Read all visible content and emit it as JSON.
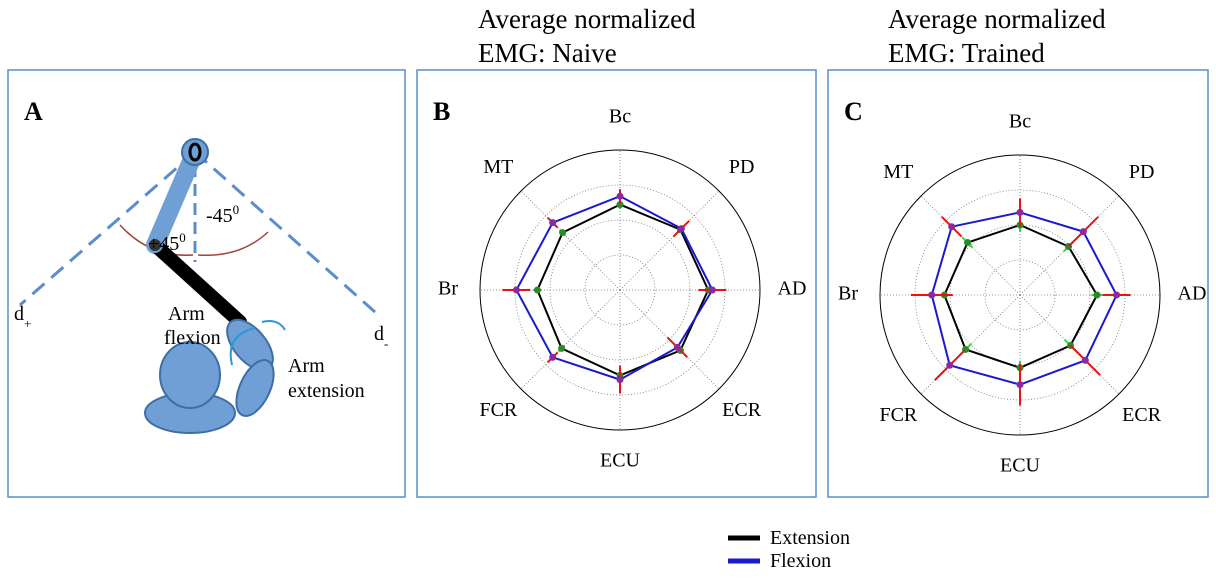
{
  "diagram": {
    "panel": "A",
    "angle_plus": {
      "base": "+45",
      "sup": "0"
    },
    "angle_minus": {
      "base": "-45",
      "sup": "0"
    },
    "d_plus": {
      "base": "d",
      "sub": "+"
    },
    "d_minus": {
      "base": "d",
      "sub": "-"
    },
    "flexion": [
      "Arm",
      "flexion"
    ],
    "extension": [
      "Arm",
      "extension"
    ]
  },
  "chart_data": [
    {
      "type": "radar",
      "panel": "B",
      "title": [
        "Average normalized",
        "EMG: Naive"
      ],
      "categories": [
        "Bc",
        "PD",
        "AD",
        "ECR",
        "ECU",
        "FCR",
        "Br",
        "MT"
      ],
      "rlim": [
        0,
        1
      ],
      "rticks": [
        0.25,
        0.5,
        0.75,
        1
      ],
      "series": [
        {
          "name": "Extension",
          "color": "#000000",
          "marker_color": "#2a8a2a",
          "error_color": "#33dd33",
          "values": [
            0.61,
            0.61,
            0.63,
            0.61,
            0.61,
            0.59,
            0.59,
            0.58
          ],
          "errors": [
            0.03,
            0.05,
            0.05,
            0.06,
            0.05,
            0.03,
            0.03,
            0.03
          ]
        },
        {
          "name": "Flexion",
          "color": "#1a1acc",
          "marker_color": "#8a2aa0",
          "error_color": "#ee1111",
          "values": [
            0.67,
            0.62,
            0.66,
            0.58,
            0.64,
            0.68,
            0.74,
            0.68
          ],
          "errors": [
            0.05,
            0.08,
            0.1,
            0.1,
            0.1,
            0.05,
            0.1,
            0.05
          ]
        }
      ]
    },
    {
      "type": "radar",
      "panel": "C",
      "title": [
        "Average normalized",
        "EMG: Trained"
      ],
      "categories": [
        "Bc",
        "PD",
        "AD",
        "ECR",
        "ECU",
        "FCR",
        "Br",
        "MT"
      ],
      "rlim": [
        0,
        1
      ],
      "rticks": [
        0.25,
        0.5,
        0.75,
        1
      ],
      "series": [
        {
          "name": "Extension",
          "color": "#000000",
          "marker_color": "#2a8a2a",
          "error_color": "#33dd33",
          "values": [
            0.5,
            0.49,
            0.55,
            0.51,
            0.52,
            0.55,
            0.54,
            0.53
          ],
          "errors": [
            0.05,
            0.05,
            0.04,
            0.06,
            0.05,
            0.06,
            0.03,
            0.05
          ]
        },
        {
          "name": "Flexion",
          "color": "#1a1acc",
          "marker_color": "#8a2aa0",
          "error_color": "#ee1111",
          "values": [
            0.59,
            0.64,
            0.69,
            0.66,
            0.64,
            0.71,
            0.63,
            0.69
          ],
          "errors": [
            0.1,
            0.15,
            0.1,
            0.15,
            0.15,
            0.15,
            0.15,
            0.1
          ]
        }
      ]
    }
  ]
}
